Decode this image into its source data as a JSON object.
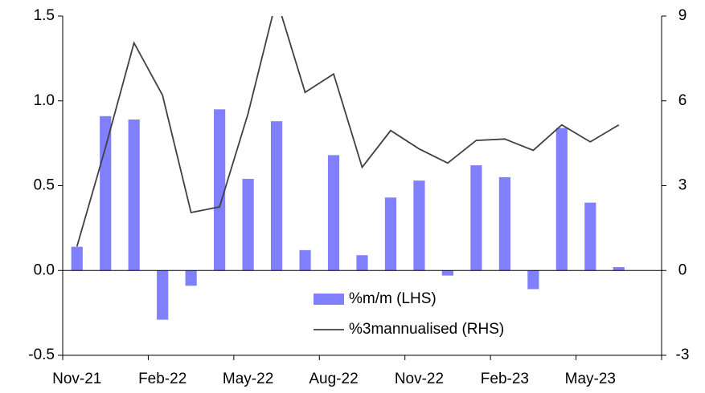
{
  "chart_data": {
    "type": "bar-line",
    "categories": [
      "Nov-21",
      null,
      null,
      "Feb-22",
      null,
      null,
      "May-22",
      null,
      null,
      "Aug-22",
      null,
      null,
      "Nov-22",
      null,
      null,
      "Feb-23",
      null,
      null,
      "May-23",
      null,
      null
    ],
    "series": [
      {
        "name": "%m/m (LHS)",
        "type": "bar",
        "color": "#8080ff",
        "values": [
          0.14,
          0.91,
          0.89,
          -0.29,
          -0.09,
          0.95,
          0.54,
          0.88,
          0.12,
          0.68,
          0.09,
          0.43,
          0.53,
          -0.03,
          0.62,
          0.55,
          -0.11,
          0.84,
          0.4,
          0.02,
          null
        ]
      },
      {
        "name": "%3mannualised (RHS)",
        "type": "line",
        "axis": "y2",
        "color": "#404040",
        "values": [
          0.85,
          4.35,
          8.05,
          6.2,
          2.05,
          2.25,
          5.55,
          9.6,
          6.3,
          6.95,
          3.65,
          4.95,
          4.3,
          3.8,
          4.6,
          4.65,
          4.25,
          5.15,
          4.55,
          5.15,
          null
        ]
      }
    ],
    "ylim": [
      -0.5,
      1.5
    ],
    "yticks": [
      -0.5,
      {
        "value": 0,
        "label": "0.0"
      },
      0.5,
      {
        "value": 1,
        "label": "1.0"
      },
      1.5
    ],
    "y2lim": [
      -3,
      9
    ],
    "y2ticks": [
      -3,
      0,
      3,
      6,
      9
    ]
  }
}
